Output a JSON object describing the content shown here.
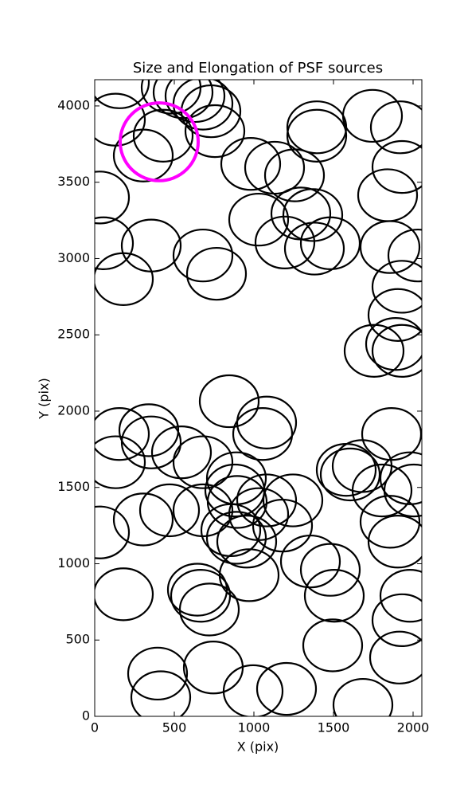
{
  "chart_data": {
    "type": "ellipse",
    "title": "Size and Elongation of PSF sources",
    "xlabel": "X (pix)",
    "ylabel": "Y (pix)",
    "xlim": [
      0,
      2055
    ],
    "ylim": [
      0,
      4172
    ],
    "xticks": [
      0,
      500,
      1000,
      1500,
      2000
    ],
    "yticks": [
      0,
      500,
      1000,
      1500,
      2000,
      2500,
      3000,
      3500,
      4000
    ],
    "grid": false,
    "series": [
      {
        "color": "#000000",
        "width": 370,
        "height": 340,
        "x": [
          155,
          130,
          305,
          430,
          480,
          555,
          630,
          680,
          730,
          755,
          1395,
          1395,
          1745,
          1920,
          1930,
          1840,
          980,
          1130,
          1255,
          1295,
          1030,
          1370,
          1195,
          1380,
          1480,
          2030,
          1855,
          1930,
          1905,
          1755,
          1890,
          1930,
          30,
          55,
          180,
          355,
          680,
          765,
          845,
          1080,
          1055,
          155,
          130,
          340,
          355,
          545,
          680,
          890,
          880,
          895,
          1080,
          1245,
          470,
          680,
          305,
          30,
          855,
          890,
          955,
          1030,
          1180,
          1580,
          1605,
          1680,
          1805,
          1865,
          1980,
          2005,
          1855,
          1905,
          1355,
          1480,
          1505,
          1980,
          1930,
          1495,
          1915,
          180,
          645,
          665,
          720,
          970,
          395,
          415,
          745,
          995,
          1205,
          1685
        ],
        "y": [
          4155,
          3910,
          3675,
          3805,
          4120,
          4090,
          4065,
          4015,
          3965,
          3835,
          3860,
          3805,
          3935,
          3860,
          3600,
          3415,
          3620,
          3595,
          3545,
          3295,
          3255,
          3285,
          3105,
          3065,
          3100,
          3020,
          3075,
          2815,
          2630,
          2395,
          2440,
          2395,
          3400,
          3100,
          2865,
          3085,
          3020,
          2900,
          2065,
          1925,
          1850,
          1850,
          1665,
          1875,
          1795,
          1730,
          1665,
          1560,
          1480,
          1405,
          1415,
          1415,
          1350,
          1350,
          1290,
          1205,
          1220,
          1170,
          1145,
          1325,
          1250,
          1615,
          1585,
          1640,
          1480,
          1850,
          1560,
          1480,
          1275,
          1145,
          1015,
          960,
          790,
          790,
          630,
          465,
          385,
          800,
          830,
          790,
          700,
          925,
          280,
          125,
          320,
          165,
          180,
          75
        ]
      },
      {
        "color": "#ff00ff",
        "width": 490,
        "height": 510,
        "x": [
          405
        ],
        "y": [
          3765
        ]
      }
    ]
  }
}
